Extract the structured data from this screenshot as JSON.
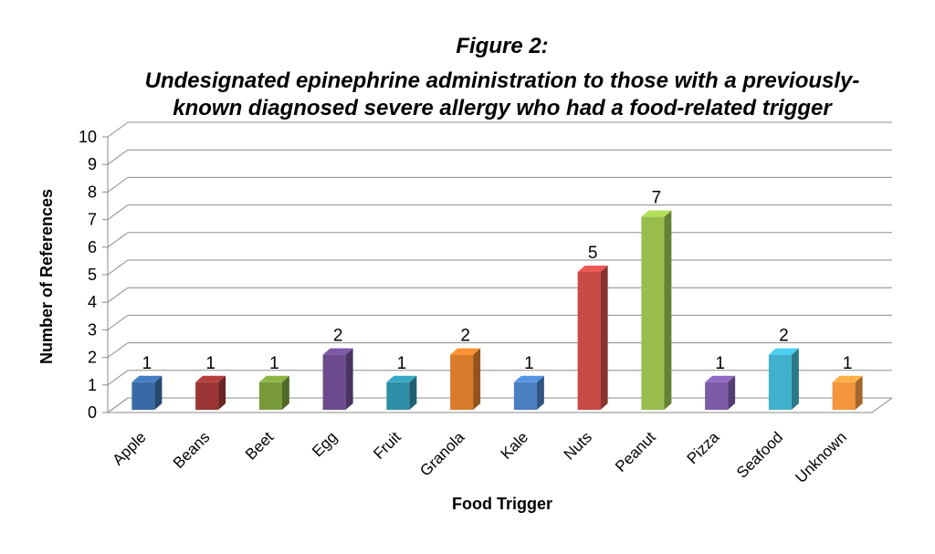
{
  "chart_data": {
    "type": "bar",
    "title_lines": [
      "Figure 2:",
      "Undesignated epinephrine administration to those with a previously-",
      "known diagnosed severe allergy who had a food-related trigger"
    ],
    "xlabel": "Food Trigger",
    "ylabel": "Number of References",
    "ylim": [
      0,
      10
    ],
    "yticks": [
      "0",
      "1",
      "2",
      "3",
      "4",
      "5",
      "6",
      "7",
      "8",
      "9",
      "10"
    ],
    "grid": true,
    "legend": "none",
    "categories": [
      "Apple",
      "Beans",
      "Beet",
      "Egg",
      "Fruit",
      "Granola",
      "Kale",
      "Nuts",
      "Peanut",
      "Pizza",
      "Seafood",
      "Unknown"
    ],
    "values": [
      1,
      1,
      1,
      2,
      1,
      2,
      1,
      5,
      7,
      1,
      2,
      1
    ],
    "colors": [
      "#3a6aa6",
      "#9b3535",
      "#789a3a",
      "#6b4b8e",
      "#2f8fa6",
      "#d87b2a",
      "#4a7fc1",
      "#c84b47",
      "#98bd4d",
      "#7b5aa6",
      "#3fb1cc",
      "#f4963c"
    ]
  }
}
